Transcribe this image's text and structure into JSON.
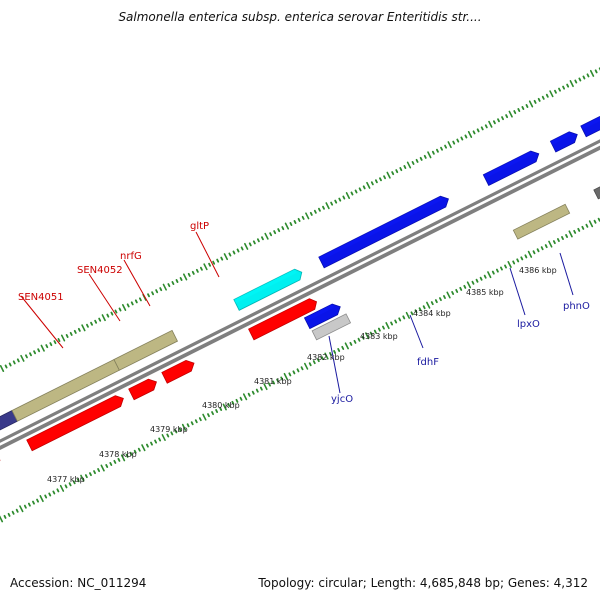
{
  "title": "Salmonella enterica subsp. enterica serovar Enteritidis str....",
  "accession_text": "Accession: NC_011294",
  "summary_text": "Topology: circular; Length: 4,685,848 bp; Genes: 4,312",
  "colors": {
    "backbone": "#7f7f7f",
    "tick": "#2e8b2e",
    "red": "#ff0000",
    "blue": "#0a14e8",
    "khaki": "#bdb783",
    "cyan": "#00f0f0",
    "lightgray": "#c8c8c8",
    "darkgray": "#6a6a6a",
    "purple": "#3a3a8a",
    "label_red": "#cc0000",
    "label_blue": "#1a1aa0"
  },
  "scale_labels": [
    "4377 kbp",
    "4378 kbp",
    "4379 kbp",
    "4380 kbp",
    "4381 kbp",
    "4382 kbp",
    "4383 kbp",
    "4384 kbp",
    "4385 kbp",
    "4386 kbp"
  ],
  "gene_labels": {
    "SEN4051": "SEN4051",
    "SEN4052": "SEN4052",
    "nrfG": "nrfG",
    "gltP": "gltP",
    "yjcO": "yjcO",
    "fdhF": "fdhF",
    "lpxO": "lpxO",
    "phnO": "phnO"
  }
}
